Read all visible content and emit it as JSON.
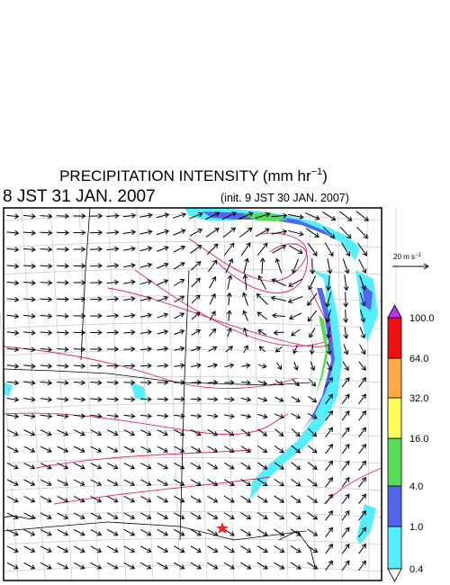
{
  "header": {
    "title_main": "PRECIPITATION INTENSITY (mm hr",
    "title_sup": "−1",
    "title_end": ")",
    "valid_time": "8 JST 31 JAN. 2007",
    "init_time": "(init. 9 JST 30 JAN. 2007)"
  },
  "scale_vector": {
    "label_main": "20 m s",
    "label_sup": "−1"
  },
  "colorbar": {
    "labels": [
      "0.4",
      "1.0",
      "4.0",
      "16.0",
      "32.0",
      "64.0",
      "100.0"
    ],
    "colors": [
      "#55eeff",
      "#5566ee",
      "#55dd55",
      "#ffff55",
      "#ffaa44",
      "#ee1111"
    ],
    "over_color": "#bb33ee",
    "under_color": "#ffffff"
  }
}
